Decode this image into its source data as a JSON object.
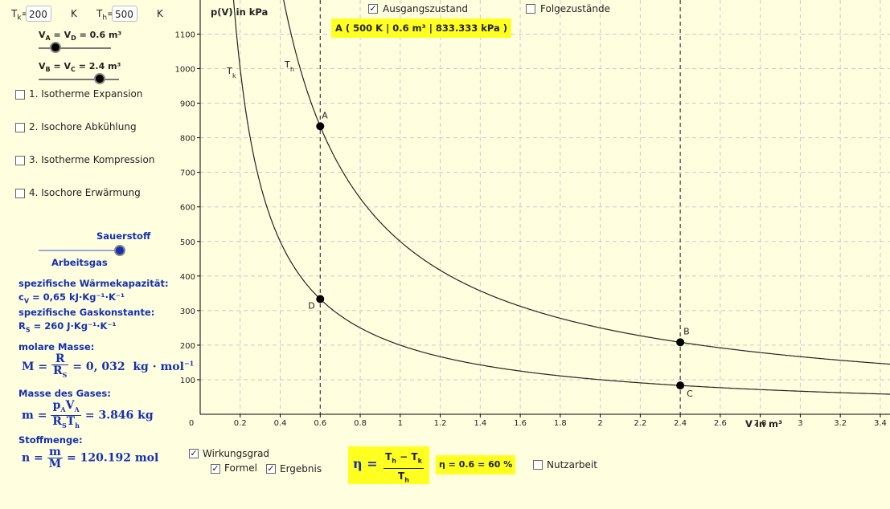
{
  "controls": {
    "tk_label": "T",
    "tk_sub": "k",
    "tk_eq": "=",
    "tk_value": "200",
    "tk_unit": "K",
    "th_label": "T",
    "th_sub": "h",
    "th_eq": "=",
    "th_value": "500",
    "th_unit": "K",
    "va_label": "V_A = V_D = 0.6 m³",
    "vb_label": "V_B = V_C = 2.4 m³",
    "va_slider": 0.6,
    "vb_slider": 2.4
  },
  "steps": [
    {
      "label": "1. Isotherme Expansion",
      "checked": false
    },
    {
      "label": "2. Isochore Abkühlung",
      "checked": false
    },
    {
      "label": "3. Isotherme Kompression",
      "checked": false
    },
    {
      "label": "4. Isochore Erwärmung",
      "checked": false
    }
  ],
  "gas": {
    "slider_top": "Sauerstoff",
    "slider_bottom": "Arbeitsgas",
    "cv_heading": "spezifische Wärmekapazität:",
    "cv_value": "c_V = 0,65 kJ·Kg⁻¹·K⁻¹",
    "rs_heading": "spezifische Gaskonstante:",
    "rs_value": "R_S = 260 J·Kg⁻¹·K⁻¹",
    "molar_heading": "molare Masse:",
    "molar_result": "= 0, 032  kg · mol",
    "mass_heading": "Masse des Gases:",
    "mass_result": "= 3.846  kg",
    "amount_heading": "Stoffmenge:",
    "amount_result": "= 120.192  mol"
  },
  "top_checks": {
    "ausgang": {
      "label": "Ausgangszustand",
      "checked": true
    },
    "folge": {
      "label": "Folgezustände",
      "checked": false
    }
  },
  "point_a_info": "A ( 500 K | 0.6 m³ | 833.333 kPa )",
  "bottom": {
    "wirkungsgrad": {
      "label": "Wirkungsgrad",
      "checked": true
    },
    "formel": {
      "label": "Formel",
      "checked": true
    },
    "ergebnis": {
      "label": "Ergebnis",
      "checked": true
    },
    "nutzarbeit": {
      "label": "Nutzarbeit",
      "checked": false
    },
    "eta_result": "η = 0.6 = 60 %"
  },
  "chart_data": {
    "type": "line",
    "ylabel": "p(V) in kPa",
    "xlabel": "V in m³",
    "xlim": [
      0,
      3.45
    ],
    "ylim": [
      0,
      1200
    ],
    "xticks": [
      "0.2",
      "0.4",
      "0.6",
      "0.8",
      "1",
      "1.2",
      "1.4",
      "1.6",
      "1.8",
      "2",
      "2.2",
      "2.4",
      "2.6",
      "2.8",
      "3",
      "3.2",
      "3.4"
    ],
    "yticks": [
      "100",
      "200",
      "300",
      "400",
      "500",
      "600",
      "700",
      "800",
      "900",
      "1000",
      "1100"
    ],
    "origin_label": "0",
    "series": [
      {
        "name": "T_h",
        "label": "T",
        "sub": "h",
        "nRT": 500
      },
      {
        "name": "T_k",
        "label": "T",
        "sub": "k",
        "nRT": 200
      }
    ],
    "points": [
      {
        "name": "A",
        "x": 0.6,
        "y": 833.333
      },
      {
        "name": "B",
        "x": 2.4,
        "y": 208.333
      },
      {
        "name": "C",
        "x": 2.4,
        "y": 83.333
      },
      {
        "name": "D",
        "x": 0.6,
        "y": 333.333
      }
    ],
    "vlines": [
      0.6,
      2.4
    ],
    "grid": true,
    "colors": {
      "grid": "#c8c8c8",
      "curve": "#222222",
      "point": "#000000"
    }
  }
}
